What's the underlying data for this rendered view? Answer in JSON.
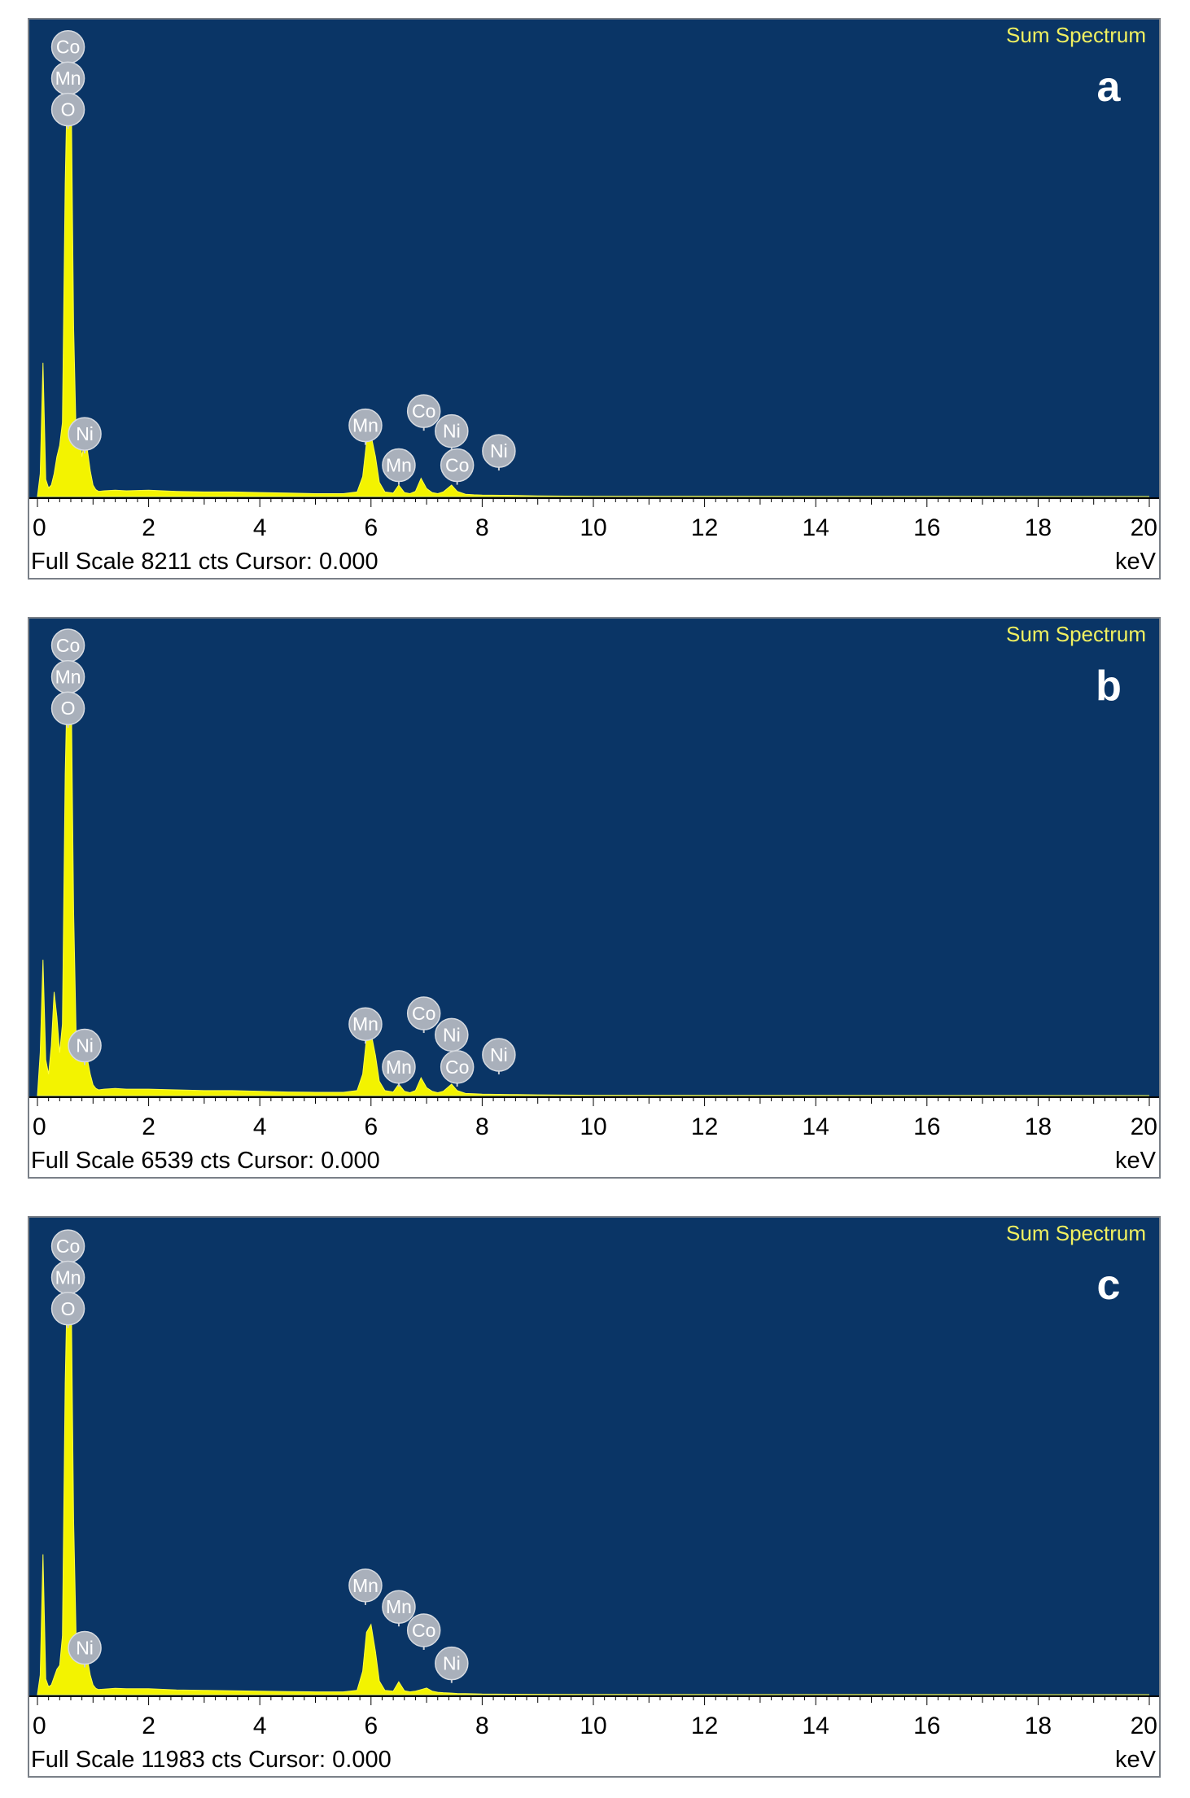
{
  "chart_data": [
    {
      "type": "line",
      "panel_label": "a",
      "title": "Sum Spectrum",
      "xlabel": "",
      "x_unit": "keV",
      "xlim": [
        0,
        20
      ],
      "x_ticks": [
        0,
        2,
        4,
        6,
        8,
        10,
        12,
        14,
        16,
        18,
        20
      ],
      "footer": "Full Scale 8211 cts Cursor: 0.000",
      "ylim": [
        0,
        8211
      ],
      "grid": false,
      "series": [
        {
          "x": [
            0.0,
            0.05,
            0.1,
            0.15,
            0.2,
            0.25,
            0.3,
            0.35,
            0.4,
            0.45,
            0.5,
            0.55,
            0.6,
            0.65,
            0.7,
            0.75,
            0.8,
            0.85,
            0.9,
            0.95,
            1.0,
            1.05,
            1.1,
            1.2,
            1.4,
            1.6,
            2.0,
            2.5,
            3.0,
            3.5,
            4.0,
            4.5,
            5.0,
            5.5,
            5.75,
            5.85,
            5.92,
            6.0,
            6.08,
            6.15,
            6.25,
            6.4,
            6.5,
            6.6,
            6.7,
            6.8,
            6.9,
            7.0,
            7.1,
            7.2,
            7.3,
            7.45,
            7.55,
            7.7,
            7.85,
            8.0,
            8.5,
            9.0,
            10.0,
            20.0
          ],
          "y": [
            0,
            400,
            2350,
            300,
            150,
            200,
            400,
            700,
            900,
            1300,
            5500,
            8000,
            7800,
            3000,
            900,
            1200,
            700,
            1000,
            800,
            450,
            200,
            120,
            90,
            100,
            110,
            100,
            110,
            90,
            80,
            80,
            70,
            60,
            50,
            50,
            80,
            350,
            950,
            1080,
            700,
            250,
            80,
            60,
            200,
            70,
            50,
            90,
            320,
            140,
            70,
            50,
            80,
            200,
            90,
            40,
            30,
            25,
            20,
            10,
            5,
            0
          ]
        }
      ],
      "peak_labels": [
        {
          "element": "Co",
          "x": 0.55,
          "y": 7900
        },
        {
          "element": "Mn",
          "x": 0.55,
          "y": 7350
        },
        {
          "element": "O",
          "x": 0.55,
          "y": 6800
        },
        {
          "element": "Ni",
          "x": 0.85,
          "y": 1100
        },
        {
          "element": "Mn",
          "x": 5.9,
          "y": 1250
        },
        {
          "element": "Co",
          "x": 6.95,
          "y": 1500
        },
        {
          "element": "Ni",
          "x": 7.45,
          "y": 1150
        },
        {
          "element": "Mn",
          "x": 6.5,
          "y": 550
        },
        {
          "element": "Co",
          "x": 7.55,
          "y": 550
        },
        {
          "element": "Ni",
          "x": 8.3,
          "y": 800
        }
      ]
    },
    {
      "type": "line",
      "panel_label": "b",
      "title": "Sum Spectrum",
      "xlabel": "",
      "x_unit": "keV",
      "xlim": [
        0,
        20
      ],
      "x_ticks": [
        0,
        2,
        4,
        6,
        8,
        10,
        12,
        14,
        16,
        18,
        20
      ],
      "footer": "Full Scale 6539 cts Cursor: 0.000",
      "ylim": [
        0,
        6539
      ],
      "grid": false,
      "series": [
        {
          "x": [
            0.0,
            0.05,
            0.1,
            0.15,
            0.2,
            0.25,
            0.3,
            0.35,
            0.4,
            0.45,
            0.5,
            0.55,
            0.6,
            0.65,
            0.7,
            0.75,
            0.8,
            0.85,
            0.9,
            0.95,
            1.0,
            1.05,
            1.1,
            1.2,
            1.4,
            1.6,
            2.0,
            2.5,
            3.0,
            3.5,
            4.0,
            4.5,
            5.0,
            5.5,
            5.75,
            5.85,
            5.92,
            6.0,
            6.08,
            6.15,
            6.25,
            6.4,
            6.5,
            6.6,
            6.7,
            6.8,
            6.9,
            7.0,
            7.1,
            7.2,
            7.3,
            7.45,
            7.55,
            7.7,
            7.85,
            8.0,
            8.5,
            9.0,
            10.0,
            20.0
          ],
          "y": [
            0,
            600,
            1900,
            500,
            300,
            700,
            1450,
            1100,
            600,
            1000,
            4500,
            6350,
            6250,
            2600,
            700,
            900,
            500,
            650,
            500,
            300,
            150,
            100,
            80,
            90,
            100,
            90,
            90,
            80,
            70,
            70,
            60,
            50,
            45,
            45,
            70,
            300,
            800,
            880,
            560,
            200,
            70,
            50,
            160,
            60,
            40,
            70,
            250,
            110,
            60,
            40,
            60,
            160,
            70,
            30,
            25,
            20,
            15,
            10,
            5,
            0
          ]
        }
      ],
      "peak_labels": [
        {
          "element": "Co",
          "x": 0.55,
          "y": 6300
        },
        {
          "element": "Mn",
          "x": 0.55,
          "y": 5860
        },
        {
          "element": "O",
          "x": 0.55,
          "y": 5420
        },
        {
          "element": "Ni",
          "x": 0.85,
          "y": 700
        },
        {
          "element": "Mn",
          "x": 5.9,
          "y": 1000
        },
        {
          "element": "Co",
          "x": 6.95,
          "y": 1150
        },
        {
          "element": "Ni",
          "x": 7.45,
          "y": 850
        },
        {
          "element": "Mn",
          "x": 6.5,
          "y": 400
        },
        {
          "element": "Co",
          "x": 7.55,
          "y": 400
        },
        {
          "element": "Ni",
          "x": 8.3,
          "y": 570
        }
      ]
    },
    {
      "type": "line",
      "panel_label": "c",
      "title": "Sum Spectrum",
      "xlabel": "",
      "x_unit": "keV",
      "xlim": [
        0,
        20
      ],
      "x_ticks": [
        0,
        2,
        4,
        6,
        8,
        10,
        12,
        14,
        16,
        18,
        20
      ],
      "footer": "Full Scale 11983 cts Cursor: 0.000",
      "ylim": [
        0,
        11983
      ],
      "grid": false,
      "series": [
        {
          "x": [
            0.0,
            0.05,
            0.1,
            0.15,
            0.2,
            0.25,
            0.3,
            0.35,
            0.4,
            0.45,
            0.5,
            0.55,
            0.6,
            0.65,
            0.7,
            0.75,
            0.8,
            0.85,
            0.9,
            0.95,
            1.0,
            1.05,
            1.1,
            1.2,
            1.4,
            1.6,
            2.0,
            2.5,
            3.0,
            3.5,
            4.0,
            4.5,
            5.0,
            5.5,
            5.75,
            5.85,
            5.92,
            6.0,
            6.08,
            6.15,
            6.25,
            6.4,
            6.5,
            6.6,
            6.7,
            6.8,
            6.9,
            7.0,
            7.1,
            7.2,
            7.3,
            7.45,
            7.55,
            7.7,
            7.85,
            8.0,
            8.5,
            9.0,
            10.0,
            20.0
          ],
          "y": [
            0,
            500,
            3600,
            400,
            200,
            250,
            450,
            650,
            750,
            1500,
            8000,
            11600,
            11300,
            4500,
            1200,
            1500,
            800,
            1200,
            900,
            500,
            250,
            160,
            130,
            140,
            160,
            150,
            150,
            120,
            110,
            100,
            90,
            80,
            70,
            70,
            110,
            600,
            1600,
            1800,
            1100,
            350,
            110,
            90,
            330,
            100,
            70,
            90,
            130,
            170,
            90,
            60,
            50,
            40,
            30,
            25,
            20,
            15,
            10,
            8,
            5,
            0
          ]
        }
      ],
      "peak_labels": [
        {
          "element": "Co",
          "x": 0.55,
          "y": 11500
        },
        {
          "element": "Mn",
          "x": 0.55,
          "y": 10700
        },
        {
          "element": "O",
          "x": 0.55,
          "y": 9900
        },
        {
          "element": "Ni",
          "x": 0.85,
          "y": 1200
        },
        {
          "element": "Mn",
          "x": 5.9,
          "y": 2800
        },
        {
          "element": "Mn",
          "x": 6.5,
          "y": 2250
        },
        {
          "element": "Co",
          "x": 6.95,
          "y": 1650
        },
        {
          "element": "Ni",
          "x": 7.45,
          "y": 800
        }
      ]
    }
  ]
}
